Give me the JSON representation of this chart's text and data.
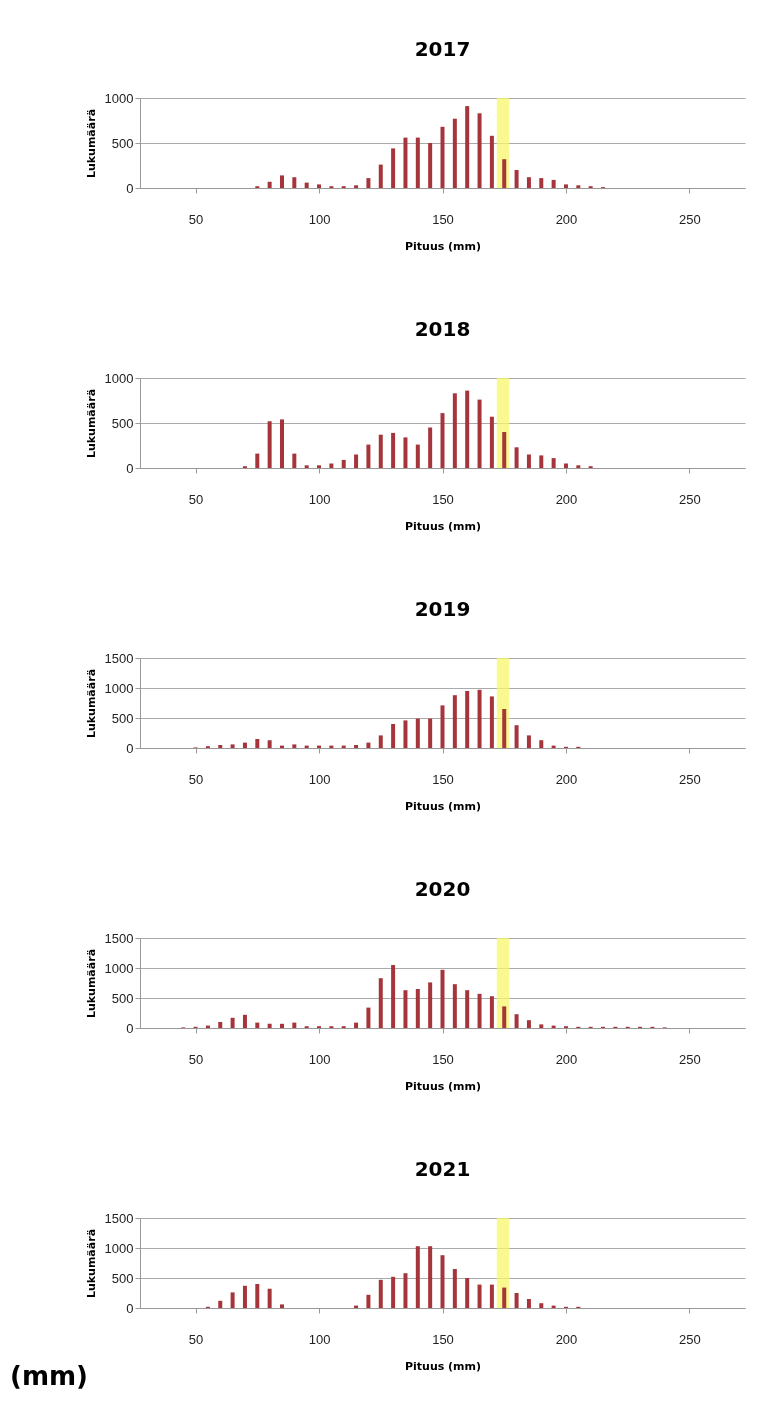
{
  "chart_data": [
    {
      "type": "bar",
      "title": "2017",
      "xlabel": "Pituus (mm)",
      "ylabel": "Lukumäärä",
      "color": "#a5353a",
      "xlim": [
        27.5,
        272.5
      ],
      "xticks": [
        50,
        100,
        150,
        200,
        250
      ],
      "ylim": [
        0,
        1000
      ],
      "yticks": [
        0,
        500,
        1000
      ],
      "grid": "y",
      "bands": [
        {
          "axis": "x",
          "from": 172,
          "to": 177,
          "color": "#f7f76a"
        }
      ],
      "x": [
        30,
        35,
        40,
        45,
        50,
        55,
        60,
        65,
        70,
        75,
        80,
        85,
        90,
        95,
        100,
        105,
        110,
        115,
        120,
        125,
        130,
        135,
        140,
        145,
        150,
        155,
        160,
        165,
        170,
        175,
        180,
        185,
        190,
        195,
        200,
        205,
        210,
        215,
        220,
        225,
        230,
        235,
        240,
        245,
        250,
        255,
        260,
        265,
        270
      ],
      "values": [
        0,
        0,
        0,
        0,
        0,
        0,
        0,
        0,
        0,
        20,
        70,
        140,
        120,
        60,
        40,
        20,
        20,
        30,
        110,
        260,
        440,
        560,
        560,
        500,
        680,
        770,
        910,
        830,
        580,
        320,
        200,
        120,
        110,
        90,
        40,
        30,
        20,
        10,
        0,
        0,
        0,
        0,
        0,
        0,
        0,
        0,
        0,
        0,
        0
      ]
    },
    {
      "type": "bar",
      "title": "2018",
      "xlabel": "Pituus (mm)",
      "ylabel": "Lukumäärä",
      "color": "#a5353a",
      "xlim": [
        27.5,
        272.5
      ],
      "xticks": [
        50,
        100,
        150,
        200,
        250
      ],
      "ylim": [
        0,
        1000
      ],
      "yticks": [
        0,
        500,
        1000
      ],
      "grid": "y",
      "bands": [
        {
          "axis": "x",
          "from": 172,
          "to": 177,
          "color": "#f7f76a"
        }
      ],
      "x": [
        30,
        35,
        40,
        45,
        50,
        55,
        60,
        65,
        70,
        75,
        80,
        85,
        90,
        95,
        100,
        105,
        110,
        115,
        120,
        125,
        130,
        135,
        140,
        145,
        150,
        155,
        160,
        165,
        170,
        175,
        180,
        185,
        190,
        195,
        200,
        205,
        210,
        215,
        220,
        225,
        230,
        235,
        240,
        245,
        250,
        255,
        260,
        265,
        270
      ],
      "values": [
        0,
        0,
        0,
        0,
        0,
        0,
        0,
        0,
        20,
        160,
        520,
        540,
        160,
        30,
        30,
        50,
        90,
        150,
        260,
        370,
        390,
        340,
        260,
        450,
        610,
        830,
        860,
        760,
        570,
        400,
        230,
        150,
        140,
        110,
        50,
        30,
        20,
        0,
        0,
        0,
        0,
        0,
        0,
        0,
        0,
        0,
        0,
        0,
        0
      ]
    },
    {
      "type": "bar",
      "title": "2019",
      "xlabel": "Pituus (mm)",
      "ylabel": "Lukumäärä",
      "color": "#a5353a",
      "xlim": [
        27.5,
        272.5
      ],
      "xticks": [
        50,
        100,
        150,
        200,
        250
      ],
      "ylim": [
        0,
        1500
      ],
      "yticks": [
        0,
        500,
        1000,
        1500
      ],
      "grid": "y",
      "bands": [
        {
          "axis": "x",
          "from": 172,
          "to": 177,
          "color": "#f7f76a"
        }
      ],
      "x": [
        30,
        35,
        40,
        45,
        50,
        55,
        60,
        65,
        70,
        75,
        80,
        85,
        90,
        95,
        100,
        105,
        110,
        115,
        120,
        125,
        130,
        135,
        140,
        145,
        150,
        155,
        160,
        165,
        170,
        175,
        180,
        185,
        190,
        195,
        200,
        205,
        210,
        215,
        220,
        225,
        230,
        235,
        240,
        245,
        250,
        255,
        260,
        265,
        270
      ],
      "values": [
        0,
        0,
        0,
        0,
        10,
        30,
        50,
        60,
        90,
        150,
        130,
        40,
        60,
        40,
        40,
        40,
        40,
        50,
        90,
        210,
        400,
        460,
        490,
        490,
        710,
        880,
        950,
        970,
        860,
        650,
        380,
        210,
        130,
        40,
        20,
        20,
        0,
        0,
        0,
        0,
        0,
        0,
        0,
        0,
        0,
        0,
        0,
        0,
        0
      ]
    },
    {
      "type": "bar",
      "title": "2020",
      "xlabel": "Pituus (mm)",
      "ylabel": "Lukumäärä",
      "color": "#a5353a",
      "xlim": [
        27.5,
        272.5
      ],
      "xticks": [
        50,
        100,
        150,
        200,
        250
      ],
      "ylim": [
        0,
        1500
      ],
      "yticks": [
        0,
        500,
        1000,
        1500
      ],
      "grid": "y",
      "bands": [
        {
          "axis": "x",
          "from": 172,
          "to": 177,
          "color": "#f7f76a"
        }
      ],
      "x": [
        30,
        35,
        40,
        45,
        50,
        55,
        60,
        65,
        70,
        75,
        80,
        85,
        90,
        95,
        100,
        105,
        110,
        115,
        120,
        125,
        130,
        135,
        140,
        145,
        150,
        155,
        160,
        165,
        170,
        175,
        180,
        185,
        190,
        195,
        200,
        205,
        210,
        215,
        220,
        225,
        230,
        235,
        240,
        245,
        250,
        255,
        260,
        265,
        270
      ],
      "values": [
        0,
        0,
        0,
        10,
        20,
        40,
        100,
        170,
        220,
        90,
        70,
        70,
        90,
        30,
        30,
        30,
        30,
        90,
        340,
        830,
        1050,
        630,
        650,
        760,
        970,
        730,
        630,
        570,
        530,
        360,
        230,
        130,
        60,
        40,
        30,
        20,
        20,
        20,
        20,
        20,
        20,
        20,
        10,
        0,
        0,
        0,
        0,
        0,
        0
      ]
    },
    {
      "type": "bar",
      "title": "2021",
      "xlabel": "Pituus (mm)",
      "ylabel": "Lukumäärä",
      "color": "#a5353a",
      "xlim": [
        27.5,
        272.5
      ],
      "xticks": [
        50,
        100,
        150,
        200,
        250
      ],
      "ylim": [
        0,
        1500
      ],
      "yticks": [
        0,
        500,
        1000,
        1500
      ],
      "grid": "y",
      "bands": [
        {
          "axis": "x",
          "from": 172,
          "to": 177,
          "color": "#f7f76a"
        }
      ],
      "annotations": [
        "(mm)"
      ],
      "x": [
        30,
        35,
        40,
        45,
        50,
        55,
        60,
        65,
        70,
        75,
        80,
        85,
        90,
        95,
        100,
        105,
        110,
        115,
        120,
        125,
        130,
        135,
        140,
        145,
        150,
        155,
        160,
        165,
        170,
        175,
        180,
        185,
        190,
        195,
        200,
        205,
        210,
        215,
        220,
        225,
        230,
        235,
        240,
        245,
        250,
        255,
        260,
        265,
        270
      ],
      "values": [
        0,
        0,
        0,
        0,
        0,
        20,
        120,
        260,
        370,
        400,
        320,
        60,
        0,
        0,
        0,
        0,
        0,
        40,
        220,
        470,
        520,
        580,
        1030,
        1030,
        880,
        650,
        500,
        390,
        390,
        340,
        250,
        150,
        80,
        40,
        20,
        20,
        0,
        0,
        0,
        0,
        0,
        0,
        0,
        0,
        0,
        0,
        0,
        0,
        0
      ]
    }
  ]
}
